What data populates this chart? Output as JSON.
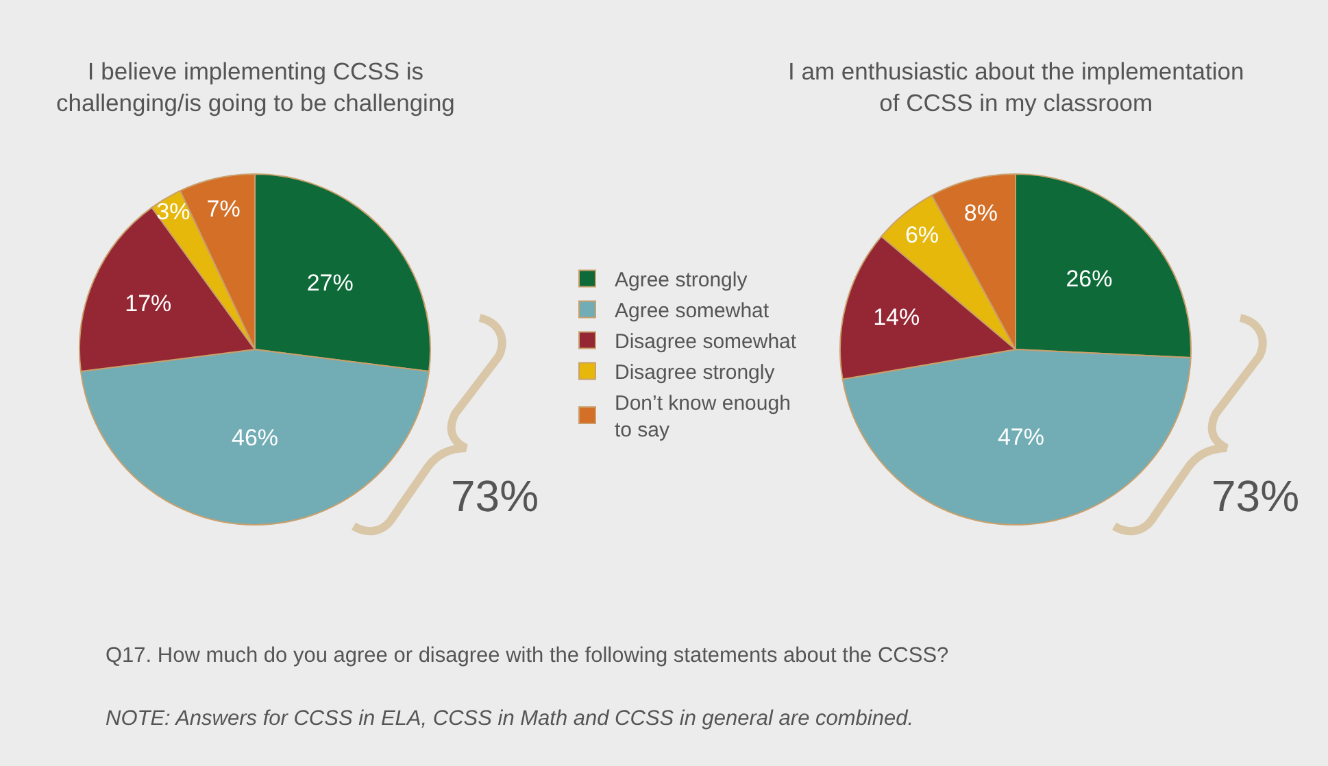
{
  "chart_data": {
    "type": "pie",
    "categories": [
      "Agree strongly",
      "Agree somewhat",
      "Disagree somewhat",
      "Disagree strongly",
      "Don’t know enough to say"
    ],
    "colors": [
      "#0e6b39",
      "#72adb5",
      "#952735",
      "#e6b80c",
      "#d46f27"
    ],
    "series": [
      {
        "name": "I believe implementing CCSS is challenging/is going to be challenging",
        "values": [
          27,
          46,
          17,
          3,
          7
        ],
        "value_labels": [
          "27%",
          "46%",
          "17%",
          "3%",
          "7%"
        ]
      },
      {
        "name": "I am enthusiastic about the implementation of CCSS in my classroom",
        "values": [
          26,
          47,
          14,
          6,
          8
        ],
        "value_labels": [
          "26%",
          "47%",
          "14%",
          "6%",
          "8%"
        ]
      }
    ],
    "legend": "center",
    "annotations": [
      "73%",
      "73%",
      "Q17. How much do you agree or disagree with the following statements about the CCSS?",
      "NOTE: Answers for CCSS in ELA, CCSS in Math and CCSS in general are combined."
    ]
  }
}
